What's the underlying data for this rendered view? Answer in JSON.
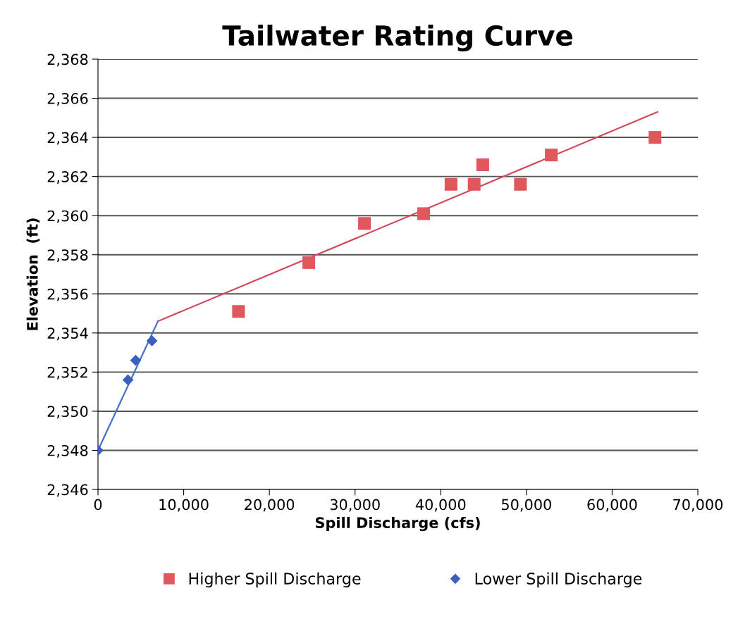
{
  "chart_data": {
    "type": "scatter",
    "title": "Tailwater Rating Curve",
    "xlabel": "Spill Discharge (cfs)",
    "ylabel": "Elevation  (ft)",
    "xlim": [
      0,
      70000
    ],
    "xticks": [
      {
        "value": 0,
        "label": "0"
      },
      {
        "value": 10000,
        "label": "10,000"
      },
      {
        "value": 20000,
        "label": "20,000"
      },
      {
        "value": 30000,
        "label": "30,000"
      },
      {
        "value": 40000,
        "label": "40,000"
      },
      {
        "value": 50000,
        "label": "50,000"
      },
      {
        "value": 60000,
        "label": "60,000"
      },
      {
        "value": 70000,
        "label": "70,000"
      }
    ],
    "ylim": [
      2346,
      2368
    ],
    "yticks": [
      {
        "value": 2346,
        "label": "2,346"
      },
      {
        "value": 2348,
        "label": "2,348"
      },
      {
        "value": 2350,
        "label": "2,350"
      },
      {
        "value": 2352,
        "label": "2,352"
      },
      {
        "value": 2354,
        "label": "2,354"
      },
      {
        "value": 2356,
        "label": "2,356"
      },
      {
        "value": 2358,
        "label": "2,358"
      },
      {
        "value": 2360,
        "label": "2,360"
      },
      {
        "value": 2362,
        "label": "2,362"
      },
      {
        "value": 2364,
        "label": "2,364"
      },
      {
        "value": 2366,
        "label": "2,366"
      },
      {
        "value": 2368,
        "label": "2,368"
      }
    ],
    "grid": "y",
    "legend": "bottom",
    "series": [
      {
        "name": "Higher Spill Discharge",
        "marker": "square",
        "color": "#e0585e",
        "x": [
          16400,
          24600,
          31100,
          38000,
          41200,
          43900,
          44900,
          49300,
          52900,
          65000
        ],
        "values": [
          2355.1,
          2357.6,
          2359.6,
          2360.1,
          2361.6,
          2361.6,
          2362.6,
          2361.6,
          2363.1,
          2364.0
        ]
      },
      {
        "name": "Lower Spill Discharge",
        "marker": "diamond",
        "color": "#3a5fbf",
        "x": [
          0,
          3500,
          4400,
          6300
        ],
        "values": [
          2348.0,
          2351.6,
          2352.6,
          2353.6
        ]
      },
      {
        "type": "line",
        "marker": "none",
        "color": "#d04a5a",
        "x": [
          7000,
          65300
        ],
        "values": [
          2354.6,
          2365.3
        ]
      },
      {
        "type": "line",
        "marker": "none",
        "color": "#4a6fc8",
        "x": [
          0,
          7000
        ],
        "values": [
          2348.0,
          2354.6
        ]
      }
    ]
  }
}
